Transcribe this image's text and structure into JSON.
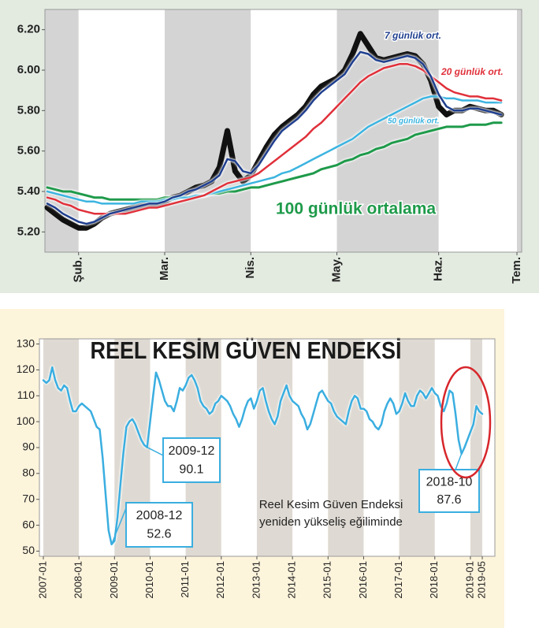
{
  "chart_data": [
    {
      "type": "line",
      "categories": [
        null,
        null,
        null,
        null,
        "Şub.",
        null,
        null,
        null,
        null,
        null,
        null,
        null,
        null,
        null,
        null,
        "Mar.",
        null,
        null,
        null,
        null,
        null,
        null,
        null,
        null,
        null,
        null,
        "Nis.",
        null,
        null,
        null,
        null,
        null,
        null,
        null,
        null,
        null,
        null,
        "May.",
        null,
        null,
        null,
        null,
        null,
        null,
        null,
        null,
        null,
        null,
        null,
        null,
        "Haz.",
        null,
        null,
        null,
        null,
        null,
        null,
        null,
        null,
        null,
        "Tem."
      ],
      "series": [
        {
          "color": "#111111",
          "values": [
            5.32,
            5.29,
            5.26,
            5.24,
            5.22,
            5.22,
            5.24,
            5.27,
            5.29,
            5.3,
            5.31,
            5.32,
            5.33,
            5.34,
            5.33,
            5.35,
            5.37,
            5.38,
            5.4,
            5.42,
            5.43,
            5.45,
            5.52,
            5.7,
            5.5,
            5.45,
            5.48,
            5.55,
            5.62,
            5.68,
            5.72,
            5.75,
            5.78,
            5.82,
            5.88,
            5.92,
            5.94,
            5.96,
            6.0,
            6.08,
            6.18,
            6.12,
            6.06,
            6.05,
            6.06,
            6.07,
            6.08,
            6.07,
            6.03,
            5.95,
            5.82,
            5.78,
            5.8,
            5.8,
            5.82,
            5.81,
            5.8,
            5.8,
            5.78,
            null,
            null
          ]
        },
        {
          "name": "100 günlük ortalama",
          "color": "#1e9a4a",
          "values": [
            5.42,
            5.41,
            5.4,
            5.4,
            5.39,
            5.38,
            5.37,
            5.37,
            5.36,
            5.36,
            5.36,
            5.36,
            5.36,
            5.36,
            5.36,
            5.37,
            5.37,
            5.37,
            5.37,
            5.38,
            5.38,
            5.39,
            5.39,
            5.4,
            5.4,
            5.41,
            5.42,
            5.42,
            5.43,
            5.44,
            5.45,
            5.46,
            5.47,
            5.48,
            5.49,
            5.51,
            5.52,
            5.53,
            5.55,
            5.56,
            5.58,
            5.59,
            5.61,
            5.62,
            5.64,
            5.65,
            5.66,
            5.68,
            5.69,
            5.7,
            5.71,
            5.72,
            5.72,
            5.72,
            5.73,
            5.73,
            5.73,
            5.74,
            5.74,
            null,
            null
          ]
        },
        {
          "name": "50 günlük ort.",
          "color": "#3cb4e0",
          "values": [
            5.4,
            5.39,
            5.38,
            5.37,
            5.36,
            5.35,
            5.35,
            5.34,
            5.34,
            5.34,
            5.34,
            5.34,
            5.35,
            5.35,
            5.35,
            5.36,
            5.36,
            5.37,
            5.37,
            5.38,
            5.38,
            5.39,
            5.4,
            5.41,
            5.42,
            5.43,
            5.44,
            5.45,
            5.46,
            5.47,
            5.49,
            5.5,
            5.52,
            5.54,
            5.56,
            5.58,
            5.6,
            5.62,
            5.64,
            5.66,
            5.69,
            5.72,
            5.74,
            5.76,
            5.78,
            5.8,
            5.82,
            5.84,
            5.86,
            5.87,
            5.87,
            5.86,
            5.86,
            5.85,
            5.85,
            5.85,
            5.84,
            5.84,
            5.84,
            null,
            null
          ]
        },
        {
          "name": "20 günlük ort.",
          "color": "#e0303a",
          "values": [
            5.37,
            5.36,
            5.34,
            5.33,
            5.31,
            5.3,
            5.29,
            5.29,
            5.29,
            5.29,
            5.29,
            5.3,
            5.31,
            5.32,
            5.32,
            5.33,
            5.34,
            5.35,
            5.36,
            5.37,
            5.38,
            5.4,
            5.42,
            5.44,
            5.45,
            5.46,
            5.47,
            5.49,
            5.52,
            5.55,
            5.58,
            5.61,
            5.64,
            5.67,
            5.71,
            5.74,
            5.78,
            5.82,
            5.86,
            5.9,
            5.94,
            5.97,
            5.99,
            6.01,
            6.02,
            6.03,
            6.03,
            6.02,
            6.0,
            5.97,
            5.94,
            5.91,
            5.89,
            5.88,
            5.87,
            5.87,
            5.86,
            5.86,
            5.85,
            null,
            null
          ]
        },
        {
          "name": "7 günlük ort.",
          "color": "#1f3f8f",
          "values": [
            5.34,
            5.32,
            5.29,
            5.27,
            5.25,
            5.24,
            5.25,
            5.27,
            5.29,
            5.3,
            5.31,
            5.32,
            5.33,
            5.34,
            5.34,
            5.35,
            5.37,
            5.38,
            5.4,
            5.41,
            5.43,
            5.45,
            5.48,
            5.56,
            5.55,
            5.5,
            5.49,
            5.53,
            5.59,
            5.65,
            5.7,
            5.73,
            5.76,
            5.8,
            5.85,
            5.89,
            5.92,
            5.95,
            5.98,
            6.04,
            6.09,
            6.08,
            6.05,
            6.04,
            6.05,
            6.06,
            6.07,
            6.06,
            6.03,
            5.97,
            5.88,
            5.82,
            5.8,
            5.8,
            5.81,
            5.81,
            5.8,
            5.79,
            5.78,
            null,
            null
          ]
        }
      ],
      "ylim": [
        5.1,
        6.3
      ],
      "yticks": [
        {
          "value": 5.2,
          "label": "5.20"
        },
        {
          "value": 5.4,
          "label": "5.40"
        },
        {
          "value": 5.6,
          "label": "5.60"
        },
        {
          "value": 5.8,
          "label": "5.80"
        },
        {
          "value": 6.0,
          "label": "6.00"
        },
        {
          "value": 6.2,
          "label": "6.20"
        }
      ],
      "grid": false
    },
    {
      "type": "line",
      "title": "REEL KESİM GÜVEN ENDEKSİ",
      "categories": [
        "2007-01",
        null,
        null,
        null,
        null,
        null,
        null,
        null,
        null,
        null,
        null,
        null,
        "2008-01",
        null,
        null,
        null,
        null,
        null,
        null,
        null,
        null,
        null,
        null,
        null,
        "2009-01",
        null,
        null,
        null,
        null,
        null,
        null,
        null,
        null,
        null,
        null,
        null,
        "2010-01",
        null,
        null,
        null,
        null,
        null,
        null,
        null,
        null,
        null,
        null,
        null,
        "2011-01",
        null,
        null,
        null,
        null,
        null,
        null,
        null,
        null,
        null,
        null,
        null,
        "2012-01",
        null,
        null,
        null,
        null,
        null,
        null,
        null,
        null,
        null,
        null,
        null,
        "2013-01",
        null,
        null,
        null,
        null,
        null,
        null,
        null,
        null,
        null,
        null,
        null,
        "2014-01",
        null,
        null,
        null,
        null,
        null,
        null,
        null,
        null,
        null,
        null,
        null,
        "2015-01",
        null,
        null,
        null,
        null,
        null,
        null,
        null,
        null,
        null,
        null,
        null,
        "2016-01",
        null,
        null,
        null,
        null,
        null,
        null,
        null,
        null,
        null,
        null,
        null,
        "2017-01",
        null,
        null,
        null,
        null,
        null,
        null,
        null,
        null,
        null,
        null,
        null,
        "2018-01",
        null,
        null,
        null,
        null,
        null,
        null,
        null,
        null,
        null,
        null,
        null,
        "2019-01",
        null,
        null,
        null,
        "2019-05"
      ],
      "series": [
        {
          "color": "#3aaee0",
          "values": [
            116,
            115,
            116,
            121,
            116,
            113,
            112,
            114,
            113,
            108,
            104,
            104,
            106,
            107,
            106,
            105,
            104,
            101,
            98,
            97,
            86,
            72,
            58,
            52.6,
            54,
            63,
            76,
            88,
            98,
            100,
            101,
            99,
            96,
            93,
            91,
            90.1,
            100,
            110,
            119,
            116,
            112,
            108,
            106,
            106,
            104,
            108,
            113,
            112,
            114,
            117,
            118,
            116,
            113,
            108,
            106,
            105,
            103,
            104,
            107,
            108,
            110,
            109,
            108,
            106,
            103,
            101,
            98,
            101,
            105,
            108,
            109,
            105,
            108,
            112,
            113,
            108,
            104,
            101,
            99,
            102,
            108,
            111,
            114,
            110,
            108,
            107,
            106,
            103,
            101,
            97,
            99,
            103,
            107,
            111,
            112,
            110,
            108,
            107,
            104,
            102,
            101,
            100,
            99,
            104,
            108,
            110,
            109,
            105,
            105,
            104,
            101,
            100,
            98,
            97,
            99,
            104,
            107,
            109,
            107,
            103,
            104,
            107,
            111,
            108,
            106,
            106,
            110,
            112,
            111,
            109,
            111,
            113,
            111,
            110,
            106,
            104,
            107,
            112,
            111,
            103,
            93,
            87.6,
            90,
            93,
            96,
            99,
            106,
            104,
            103
          ]
        }
      ],
      "ylim": [
        48,
        132
      ],
      "yticks": [
        50,
        60,
        70,
        80,
        90,
        100,
        110,
        120,
        130
      ],
      "grid": false,
      "annotations": [
        {
          "date": "2009-12",
          "value": 90.1
        },
        {
          "date": "2008-12",
          "value": 52.6
        },
        {
          "date": "2018-10",
          "value": 87.6
        }
      ],
      "note": [
        "Reel Kesim Güven Endeksi",
        "yeniden yükseliş eğiliminde"
      ]
    }
  ]
}
